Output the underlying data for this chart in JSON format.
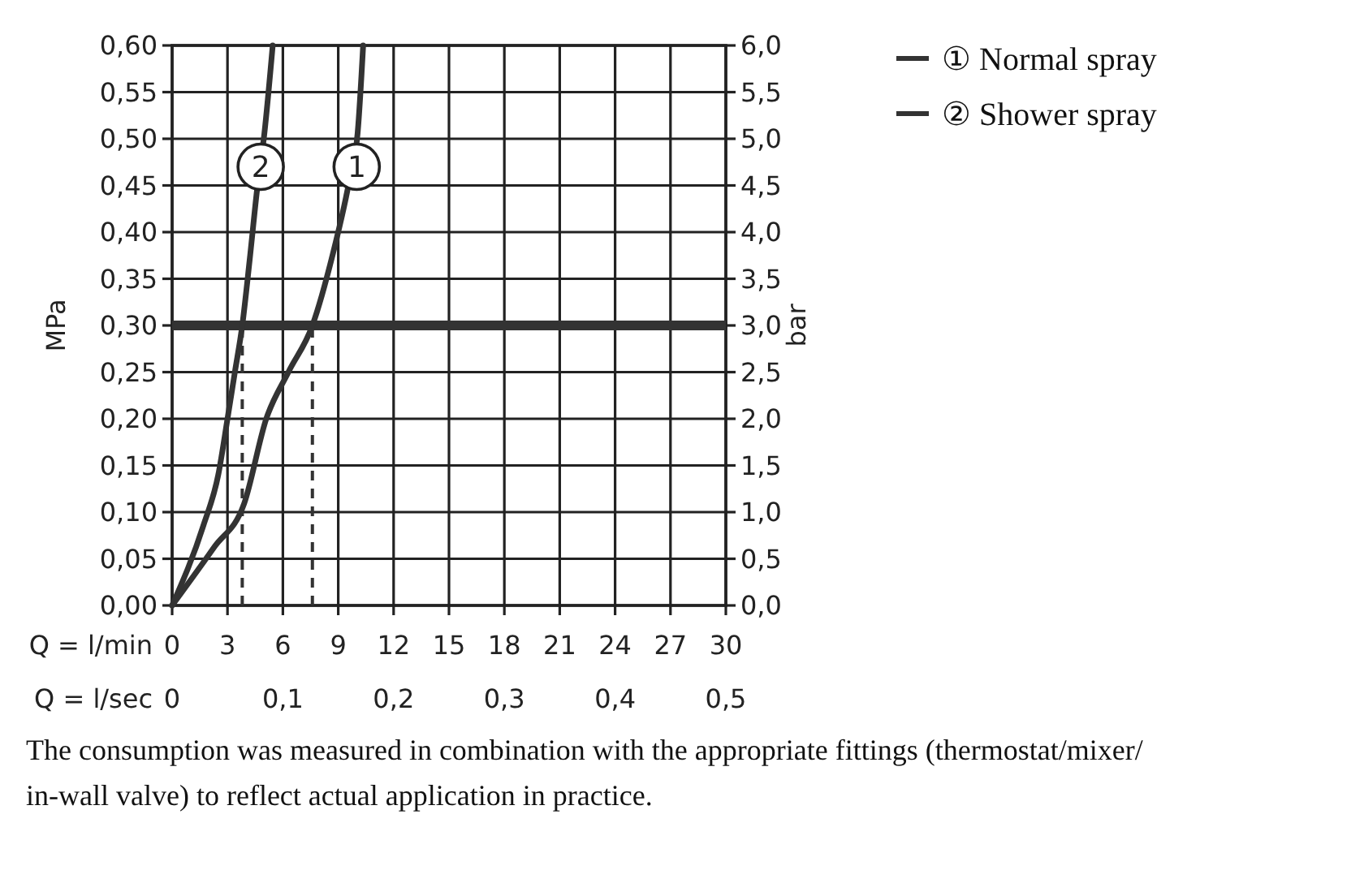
{
  "chart_data": {
    "type": "line",
    "xlabel": "Q = l/min",
    "x2label": "Q = l/sec",
    "ylabel": "MPa",
    "y2label": "bar",
    "xlim": [
      0,
      30
    ],
    "xticks": [
      0,
      3,
      6,
      9,
      12,
      15,
      18,
      21,
      24,
      27,
      30
    ],
    "x2lim": [
      0,
      0.5
    ],
    "x2ticks": [
      0,
      {
        "value": 0.1,
        "label": "0,1"
      },
      {
        "value": 0.2,
        "label": "0,2"
      },
      {
        "value": 0.3,
        "label": "0,3"
      },
      {
        "value": 0.4,
        "label": "0,4"
      },
      {
        "value": 0.5,
        "label": "0,5"
      }
    ],
    "ylim": [
      0,
      0.6
    ],
    "yticks": [
      {
        "value": 0,
        "label": "0,00"
      },
      {
        "value": 0.05,
        "label": "0,05"
      },
      {
        "value": 0.1,
        "label": "0,10"
      },
      {
        "value": 0.15,
        "label": "0,15"
      },
      {
        "value": 0.2,
        "label": "0,20"
      },
      {
        "value": 0.25,
        "label": "0,25"
      },
      {
        "value": 0.3,
        "label": "0,30"
      },
      {
        "value": 0.35,
        "label": "0,35"
      },
      {
        "value": 0.4,
        "label": "0,40"
      },
      {
        "value": 0.45,
        "label": "0,45"
      },
      {
        "value": 0.5,
        "label": "0,50"
      },
      {
        "value": 0.55,
        "label": "0,55"
      },
      {
        "value": 0.6,
        "label": "0,60"
      }
    ],
    "y2lim": [
      0,
      6
    ],
    "y2ticks": [
      {
        "value": 0,
        "label": "0,0"
      },
      {
        "value": 0.5,
        "label": "0,5"
      },
      {
        "value": 1,
        "label": "1,0"
      },
      {
        "value": 1.5,
        "label": "1,5"
      },
      {
        "value": 2,
        "label": "2,0"
      },
      {
        "value": 2.5,
        "label": "2,5"
      },
      {
        "value": 3,
        "label": "3,0"
      },
      {
        "value": 3.5,
        "label": "3,5"
      },
      {
        "value": 4,
        "label": "4,0"
      },
      {
        "value": 4.5,
        "label": "4,5"
      },
      {
        "value": 5,
        "label": "5,0"
      },
      {
        "value": 5.5,
        "label": "5,5"
      },
      {
        "value": 6,
        "label": "6,0"
      }
    ],
    "grid": true,
    "legend": "top right",
    "marker": "none",
    "line_style": "solid",
    "series": [
      {
        "name": "① Normal spray",
        "color": "#333333",
        "x": [
          0,
          2.3,
          3.9,
          5.1,
          6.3,
          7.6,
          8.7,
          9.5,
          10.05,
          10.35
        ],
        "values": [
          0,
          0.063,
          0.109,
          0.2,
          0.25,
          0.3,
          0.376,
          0.445,
          0.506,
          0.6
        ]
      },
      {
        "name": "② Shower spray",
        "color": "#333333",
        "x": [
          0,
          1.7,
          2.5,
          3.0,
          3.4,
          3.8,
          4.2,
          4.6,
          5.0,
          5.45
        ],
        "values": [
          0,
          0.086,
          0.14,
          0.2,
          0.25,
          0.3,
          0.37,
          0.445,
          0.506,
          0.6
        ]
      }
    ],
    "ref_lines": [
      {
        "axis": "y",
        "value": 0.3,
        "color": "#333333",
        "line_style": "solid"
      },
      {
        "axis": "x",
        "value": 3.8,
        "color": "#333333",
        "line_style": "dashed"
      },
      {
        "axis": "x",
        "value": 7.6,
        "color": "#333333",
        "line_style": "dashed"
      }
    ],
    "annotations": [
      {
        "text": "1",
        "x": 10.0,
        "y": 0.47
      },
      {
        "text": "2",
        "x": 4.8,
        "y": 0.47
      },
      "The consumption was measured in combination with the appropriate fittings (thermostat/mixer/ in-wall valve) to reflect actual application in practice."
    ]
  }
}
